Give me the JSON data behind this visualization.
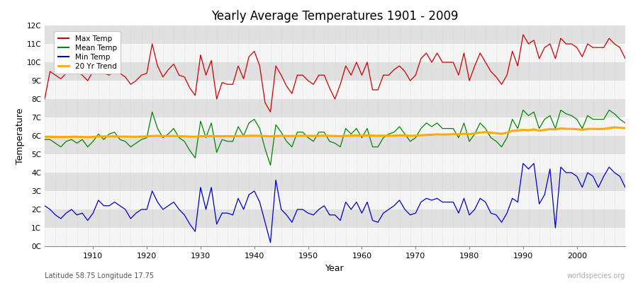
{
  "title": "Yearly Average Temperatures 1901 - 2009",
  "xlabel": "Year",
  "ylabel": "Temperature",
  "subtitle_left": "Latitude 58.75 Longitude 17.75",
  "subtitle_right": "worldspecies.org",
  "years": [
    1901,
    1902,
    1903,
    1904,
    1905,
    1906,
    1907,
    1908,
    1909,
    1910,
    1911,
    1912,
    1913,
    1914,
    1915,
    1916,
    1917,
    1918,
    1919,
    1920,
    1921,
    1922,
    1923,
    1924,
    1925,
    1926,
    1927,
    1928,
    1929,
    1930,
    1931,
    1932,
    1933,
    1934,
    1935,
    1936,
    1937,
    1938,
    1939,
    1940,
    1941,
    1942,
    1943,
    1944,
    1945,
    1946,
    1947,
    1948,
    1949,
    1950,
    1951,
    1952,
    1953,
    1954,
    1955,
    1956,
    1957,
    1958,
    1959,
    1960,
    1961,
    1962,
    1963,
    1964,
    1965,
    1966,
    1967,
    1968,
    1969,
    1970,
    1971,
    1972,
    1973,
    1974,
    1975,
    1976,
    1977,
    1978,
    1979,
    1980,
    1981,
    1982,
    1983,
    1984,
    1985,
    1986,
    1987,
    1988,
    1989,
    1990,
    1991,
    1992,
    1993,
    1994,
    1995,
    1996,
    1997,
    1998,
    1999,
    2000,
    2001,
    2002,
    2003,
    2004,
    2005,
    2006,
    2007,
    2008,
    2009
  ],
  "max_temp": [
    8.0,
    9.5,
    9.3,
    9.1,
    9.4,
    9.6,
    9.5,
    9.3,
    9.0,
    9.5,
    9.6,
    9.4,
    9.3,
    9.5,
    9.4,
    9.2,
    8.8,
    9.0,
    9.3,
    9.4,
    11.0,
    9.8,
    9.2,
    9.6,
    9.9,
    9.3,
    9.2,
    8.6,
    8.2,
    10.4,
    9.3,
    10.1,
    8.0,
    8.9,
    8.8,
    8.8,
    9.8,
    9.1,
    10.3,
    10.6,
    9.8,
    7.8,
    7.3,
    9.8,
    9.3,
    8.7,
    8.3,
    9.3,
    9.3,
    9.0,
    8.8,
    9.3,
    9.3,
    8.6,
    8.0,
    8.8,
    9.8,
    9.3,
    10.0,
    9.3,
    10.0,
    8.5,
    8.5,
    9.3,
    9.3,
    9.6,
    9.8,
    9.5,
    9.0,
    9.3,
    10.2,
    10.5,
    10.0,
    10.5,
    10.0,
    10.0,
    10.0,
    9.3,
    10.5,
    9.0,
    9.8,
    10.5,
    10.0,
    9.5,
    9.2,
    8.8,
    9.3,
    10.6,
    9.8,
    11.5,
    11.0,
    11.2,
    10.2,
    10.8,
    11.0,
    10.2,
    11.3,
    11.0,
    11.0,
    10.8,
    10.3,
    11.0,
    10.8,
    10.8,
    10.8,
    11.3,
    11.0,
    10.8,
    10.2
  ],
  "mean_temp": [
    5.8,
    5.8,
    5.6,
    5.4,
    5.7,
    5.8,
    5.6,
    5.8,
    5.4,
    5.7,
    6.1,
    5.8,
    6.1,
    6.2,
    5.8,
    5.7,
    5.4,
    5.6,
    5.8,
    5.9,
    7.3,
    6.4,
    5.9,
    6.1,
    6.4,
    5.9,
    5.7,
    5.2,
    4.8,
    6.8,
    5.9,
    6.7,
    5.1,
    5.8,
    5.7,
    5.7,
    6.5,
    6.0,
    6.7,
    6.9,
    6.4,
    5.3,
    4.4,
    6.6,
    6.2,
    5.7,
    5.4,
    6.2,
    6.2,
    5.9,
    5.7,
    6.2,
    6.2,
    5.7,
    5.6,
    5.4,
    6.4,
    6.1,
    6.4,
    5.9,
    6.4,
    5.4,
    5.4,
    5.9,
    6.1,
    6.2,
    6.5,
    6.1,
    5.7,
    5.9,
    6.4,
    6.7,
    6.5,
    6.7,
    6.4,
    6.4,
    6.4,
    5.9,
    6.7,
    5.7,
    6.1,
    6.7,
    6.4,
    5.9,
    5.7,
    5.4,
    5.9,
    6.9,
    6.4,
    7.4,
    7.1,
    7.3,
    6.4,
    6.9,
    7.1,
    6.4,
    7.4,
    7.2,
    7.1,
    6.9,
    6.4,
    7.1,
    6.9,
    6.9,
    6.9,
    7.4,
    7.2,
    6.9,
    6.7
  ],
  "min_temp": [
    2.2,
    2.0,
    1.7,
    1.5,
    1.8,
    2.0,
    1.7,
    1.8,
    1.4,
    1.8,
    2.5,
    2.2,
    2.2,
    2.4,
    2.2,
    2.0,
    1.5,
    1.8,
    2.0,
    2.0,
    3.0,
    2.4,
    2.0,
    2.2,
    2.4,
    2.0,
    1.7,
    1.2,
    0.8,
    3.2,
    2.0,
    3.2,
    1.2,
    1.8,
    1.8,
    1.7,
    2.6,
    2.0,
    2.8,
    3.0,
    2.4,
    1.3,
    0.2,
    3.6,
    2.0,
    1.7,
    1.3,
    2.0,
    2.0,
    1.8,
    1.7,
    2.0,
    2.2,
    1.7,
    1.7,
    1.4,
    2.4,
    2.0,
    2.4,
    1.8,
    2.4,
    1.4,
    1.3,
    1.8,
    2.0,
    2.2,
    2.5,
    2.0,
    1.7,
    1.8,
    2.4,
    2.6,
    2.5,
    2.6,
    2.4,
    2.4,
    2.4,
    1.8,
    2.6,
    1.7,
    2.0,
    2.6,
    2.4,
    1.8,
    1.7,
    1.3,
    1.8,
    2.6,
    2.4,
    4.5,
    4.2,
    4.5,
    2.3,
    2.8,
    4.2,
    1.0,
    4.3,
    4.0,
    4.0,
    3.8,
    3.2,
    4.0,
    3.8,
    3.2,
    3.8,
    4.3,
    4.0,
    3.8,
    3.2
  ],
  "trend": [
    5.95,
    5.95,
    5.94,
    5.94,
    5.94,
    5.95,
    5.95,
    5.94,
    5.93,
    5.94,
    5.96,
    5.97,
    5.97,
    5.97,
    5.96,
    5.96,
    5.95,
    5.95,
    5.96,
    5.97,
    5.99,
    6.0,
    5.99,
    5.99,
    5.99,
    5.98,
    5.97,
    5.96,
    5.95,
    5.98,
    5.98,
    5.99,
    5.98,
    5.98,
    5.98,
    5.98,
    5.99,
    5.99,
    6.0,
    6.01,
    6.0,
    5.99,
    5.97,
    5.99,
    6.0,
    5.99,
    5.99,
    6.0,
    6.01,
    6.0,
    6.0,
    6.0,
    6.01,
    6.0,
    5.99,
    5.98,
    6.0,
    6.01,
    6.02,
    6.01,
    6.02,
    6.01,
    6.0,
    6.01,
    6.01,
    6.01,
    6.03,
    6.02,
    6.0,
    6.01,
    6.03,
    6.05,
    6.06,
    6.08,
    6.07,
    6.07,
    6.09,
    6.08,
    6.11,
    6.09,
    6.13,
    6.18,
    6.2,
    6.17,
    6.14,
    6.11,
    6.17,
    6.27,
    6.29,
    6.33,
    6.3,
    6.35,
    6.28,
    6.32,
    6.37,
    6.35,
    6.4,
    6.38,
    6.38,
    6.36,
    6.33,
    6.38,
    6.38,
    6.37,
    6.38,
    6.42,
    6.46,
    6.44,
    6.42
  ],
  "max_color": "#cc0000",
  "mean_color": "#008800",
  "min_color": "#0000cc",
  "trend_color": "#ffaa00",
  "fig_bg": "#ffffff",
  "band_light": "#f5f5f5",
  "band_dark": "#e0e0e0",
  "ylim": [
    0,
    12
  ],
  "yticks": [
    0,
    1,
    2,
    3,
    4,
    5,
    6,
    7,
    8,
    9,
    10,
    11,
    12
  ],
  "ytick_labels": [
    "0C",
    "1C",
    "2C",
    "3C",
    "4C",
    "5C",
    "6C",
    "7C",
    "8C",
    "9C",
    "10C",
    "11C",
    "12C"
  ],
  "xlim": [
    1901,
    2009
  ],
  "decade_ticks": [
    1910,
    1920,
    1930,
    1940,
    1950,
    1960,
    1970,
    1980,
    1990,
    2000
  ]
}
